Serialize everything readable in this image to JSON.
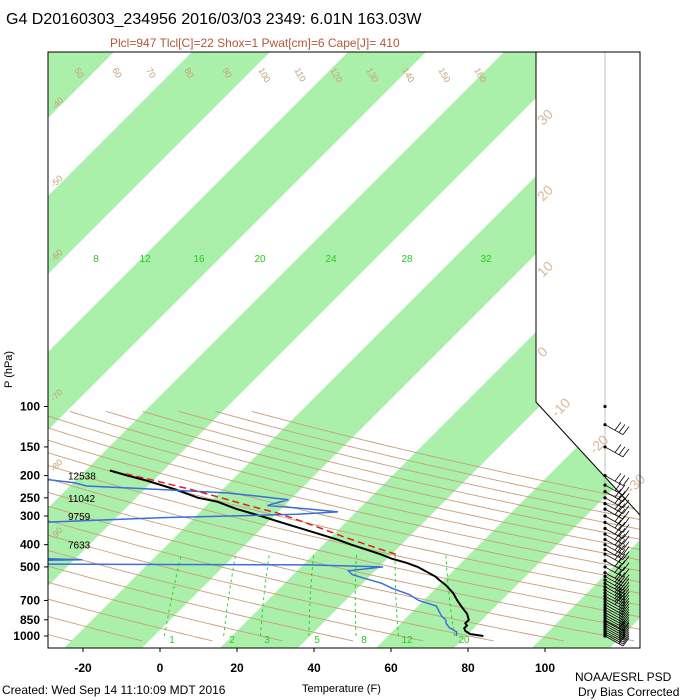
{
  "title": "G4 D20160303_234956 2016/03/03 2349:  6.01N 163.03W",
  "subtitle": "Plcl=947 Tlcl[C]=22 Shox=1 Pwat[cm]=6 Cape[J]= 410",
  "footer": {
    "created": "Created: Wed Sep 14 11:10:09 MDT 2016",
    "credit_line1": "NOAA/ESRL PSD",
    "credit_line2": "Dry Bias Corrected"
  },
  "colors": {
    "isotherm_band": "#aaf0aa",
    "temperature": "#000000",
    "dewpoint": "#3a6fd8",
    "parcel": "#e0201c",
    "dry_adiabat": "#c8a07a",
    "mixing_ratio": "#22cc22",
    "frame": "#000000"
  },
  "chart_data": {
    "type": "line",
    "title": "G4 D20160303_234956 2016/03/03 2349:  6.01N 163.03W",
    "subtitle": "Plcl=947 Tlcl[C]=22 Shox=1 Pwat[cm]=6 Cape[J]= 410",
    "xlabel": "Temperature (F)",
    "ylabel": "P (hPa)",
    "y_scale": "log",
    "y_inverted": true,
    "xlim_at_1000hPa": [
      -29,
      127
    ],
    "ylim": [
      1000,
      100
    ],
    "x_ticks": [
      "-20",
      "0",
      "20",
      "40",
      "60",
      "80",
      "100"
    ],
    "y_ticks": [
      "100",
      "150",
      "200",
      "250",
      "300",
      "400",
      "500",
      "700",
      "850",
      "1000"
    ],
    "height_labels": [
      {
        "p": 200,
        "label": "12538"
      },
      {
        "p": 250,
        "label": "11042"
      },
      {
        "p": 300,
        "label": "9759"
      },
      {
        "p": 400,
        "label": "7633"
      }
    ],
    "isotherm_labels_C": [
      "30",
      "20",
      "10",
      "0",
      "-10",
      "-20",
      "-30"
    ],
    "isotherm_labels_C_left": [
      "-40",
      "-50",
      "-60",
      "-70",
      "-80",
      "-90"
    ],
    "isotherm_labels_F_top": [
      "50",
      "60",
      "70",
      "80",
      "90",
      "100",
      "110",
      "120",
      "130",
      "140",
      "150",
      "160"
    ],
    "mixing_ratio_labels_top": [
      "8",
      "12",
      "16",
      "20",
      "24",
      "28",
      "32"
    ],
    "mixing_ratio_labels_bottom": [
      "1",
      "2",
      "3",
      "5",
      "8",
      "12",
      "20"
    ],
    "series": [
      {
        "key": "temperature",
        "points": [
          {
            "p": 1000,
            "t": 84
          },
          {
            "p": 980,
            "t": 80
          },
          {
            "p": 950,
            "t": 78
          },
          {
            "p": 925,
            "t": 77
          },
          {
            "p": 900,
            "t": 77
          },
          {
            "p": 880,
            "t": 76
          },
          {
            "p": 850,
            "t": 76
          },
          {
            "p": 800,
            "t": 74
          },
          {
            "p": 750,
            "t": 71
          },
          {
            "p": 700,
            "t": 68
          },
          {
            "p": 650,
            "t": 65
          },
          {
            "p": 600,
            "t": 61
          },
          {
            "p": 570,
            "t": 58
          },
          {
            "p": 550,
            "t": 56
          },
          {
            "p": 500,
            "t": 49
          },
          {
            "p": 480,
            "t": 45
          },
          {
            "p": 460,
            "t": 40
          },
          {
            "p": 440,
            "t": 36
          },
          {
            "p": 400,
            "t": 26
          },
          {
            "p": 380,
            "t": 21
          },
          {
            "p": 350,
            "t": 12
          },
          {
            "p": 320,
            "t": 2
          },
          {
            "p": 300,
            "t": -5
          },
          {
            "p": 280,
            "t": -13
          },
          {
            "p": 260,
            "t": -20
          },
          {
            "p": 250,
            "t": -26
          },
          {
            "p": 230,
            "t": -34
          },
          {
            "p": 210,
            "t": -44
          },
          {
            "p": 200,
            "t": -50
          },
          {
            "p": 190,
            "t": -56
          }
        ]
      },
      {
        "key": "dewpoint",
        "points": [
          {
            "p": 1000,
            "t": 77
          },
          {
            "p": 960,
            "t": 76
          },
          {
            "p": 920,
            "t": 73
          },
          {
            "p": 880,
            "t": 71
          },
          {
            "p": 850,
            "t": 70
          },
          {
            "p": 820,
            "t": 68
          },
          {
            "p": 780,
            "t": 66
          },
          {
            "p": 740,
            "t": 64
          },
          {
            "p": 700,
            "t": 58
          },
          {
            "p": 660,
            "t": 54
          },
          {
            "p": 620,
            "t": 48
          },
          {
            "p": 590,
            "t": 44
          },
          {
            "p": 560,
            "t": 38
          },
          {
            "p": 540,
            "t": 34
          },
          {
            "p": 520,
            "t": 32
          },
          {
            "p": 500,
            "t": 40
          },
          {
            "p": 490,
            "t": 20
          },
          {
            "p": 485,
            "t": -62
          },
          {
            "p": 470,
            "t": -58
          },
          {
            "p": 465,
            "t": -40
          },
          {
            "p": 455,
            "t": -60
          },
          {
            "p": 450,
            "t": -56
          },
          {
            "p": 440,
            "t": -60
          },
          {
            "p": 430,
            "t": -58
          },
          {
            "p": 415,
            "t": -84
          },
          {
            "p": 400,
            "t": -82
          },
          {
            "p": 390,
            "t": -80
          },
          {
            "p": 370,
            "t": -78
          },
          {
            "p": 355,
            "t": -72
          },
          {
            "p": 345,
            "t": -74
          },
          {
            "p": 330,
            "t": -96
          },
          {
            "p": 320,
            "t": -60
          },
          {
            "p": 305,
            "t": -30
          },
          {
            "p": 295,
            "t": 4
          },
          {
            "p": 288,
            "t": 14
          },
          {
            "p": 280,
            "t": 6
          },
          {
            "p": 270,
            "t": -6
          },
          {
            "p": 262,
            "t": -4
          },
          {
            "p": 255,
            "t": -2
          },
          {
            "p": 245,
            "t": -12
          },
          {
            "p": 238,
            "t": -20
          },
          {
            "p": 230,
            "t": -38
          },
          {
            "p": 222,
            "t": -58
          },
          {
            "p": 215,
            "t": -62
          },
          {
            "p": 208,
            "t": -70
          },
          {
            "p": 200,
            "t": -74
          }
        ]
      },
      {
        "key": "parcel",
        "points": [
          {
            "p": 440,
            "t": 40
          },
          {
            "p": 420,
            "t": 35
          },
          {
            "p": 400,
            "t": 30
          },
          {
            "p": 370,
            "t": 22
          },
          {
            "p": 340,
            "t": 14
          },
          {
            "p": 310,
            "t": 5
          },
          {
            "p": 290,
            "t": -2
          },
          {
            "p": 270,
            "t": -11
          },
          {
            "p": 250,
            "t": -20
          },
          {
            "p": 230,
            "t": -30
          },
          {
            "p": 210,
            "t": -42
          },
          {
            "p": 195,
            "t": -52
          }
        ]
      }
    ],
    "wind_barb_levels": [
      1000,
      980,
      960,
      940,
      920,
      900,
      880,
      860,
      850,
      830,
      810,
      790,
      770,
      750,
      730,
      710,
      690,
      670,
      650,
      630,
      610,
      590,
      570,
      550,
      530,
      500,
      470,
      440,
      420,
      400,
      380,
      360,
      340,
      320,
      300,
      280,
      265,
      250,
      235,
      220,
      200,
      150,
      120,
      100
    ]
  }
}
